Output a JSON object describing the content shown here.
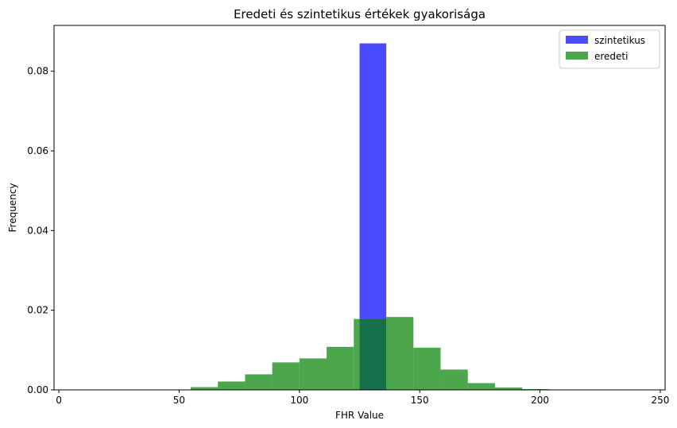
{
  "chart_data": {
    "type": "bar",
    "title": "Eredeti és szintetikus értékek gyakorisága",
    "xlabel": "FHR Value",
    "ylabel": "Frequency",
    "xlim": [
      -2,
      252
    ],
    "ylim": [
      0,
      0.0915
    ],
    "xticks": [
      0,
      50,
      100,
      150,
      200,
      250
    ],
    "yticks": [
      0.0,
      0.02,
      0.04,
      0.06,
      0.08
    ],
    "ytick_labels": [
      "0.00",
      "0.02",
      "0.04",
      "0.06",
      "0.08"
    ],
    "legend_position": "top-right",
    "grid": false,
    "series": [
      {
        "name": "szintetikus",
        "color": "#0000ff",
        "opacity": 0.7,
        "bins": [
          [
            125,
            136.1,
            0.087
          ]
        ]
      },
      {
        "name": "eredeti",
        "color": "#008000",
        "opacity": 0.7,
        "bins": [
          [
            43.5,
            54.8,
            0.0001
          ],
          [
            54.8,
            66.1,
            0.0007
          ],
          [
            66.1,
            77.4,
            0.0021
          ],
          [
            77.4,
            88.7,
            0.0039
          ],
          [
            88.7,
            100.0,
            0.0069
          ],
          [
            100.0,
            111.3,
            0.0079
          ],
          [
            111.3,
            122.6,
            0.0108
          ],
          [
            122.6,
            136.1,
            0.0178
          ],
          [
            136.1,
            147.4,
            0.0183
          ],
          [
            147.4,
            158.7,
            0.0106
          ],
          [
            158.7,
            170.0,
            0.0051
          ],
          [
            170.0,
            181.3,
            0.0017
          ],
          [
            181.3,
            192.6,
            0.0006
          ],
          [
            192.6,
            203.9,
            0.0002
          ],
          [
            203.9,
            215.2,
            0.0001
          ],
          [
            215.2,
            226.5,
            0.0001
          ],
          [
            226.5,
            239.0,
            0.0001
          ]
        ]
      }
    ]
  }
}
